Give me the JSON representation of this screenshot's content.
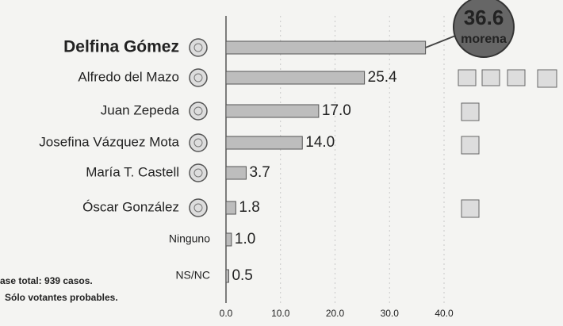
{
  "chart_data": {
    "type": "bar",
    "orientation": "horizontal",
    "categories": [
      "Delfina Gómez",
      "Alfredo del Mazo",
      "Juan Zepeda",
      "Josefina Vázquez Mota",
      "María T. Castell",
      "Óscar González",
      "Ninguno",
      "NS/NC"
    ],
    "values": [
      36.6,
      25.4,
      17.0,
      14.0,
      3.7,
      1.8,
      1.0,
      0.5
    ],
    "value_labels": [
      "36.6",
      "25.4",
      "17.0",
      "14.0",
      "3.7",
      "1.8",
      "1.0",
      "0.5"
    ],
    "color": "#bdbdbd",
    "xlim": [
      0,
      40
    ],
    "xticks": [
      {
        "value": 0,
        "label": "0.0"
      },
      {
        "value": 10,
        "label": "10.0"
      },
      {
        "value": 20,
        "label": "20.0"
      },
      {
        "value": 30,
        "label": "30.0"
      },
      {
        "value": 40,
        "label": "40.0"
      }
    ],
    "grid": true,
    "badge_label": "morena",
    "notes": [
      "ase total: 939 casos.",
      "Sólo votantes probables."
    ]
  }
}
